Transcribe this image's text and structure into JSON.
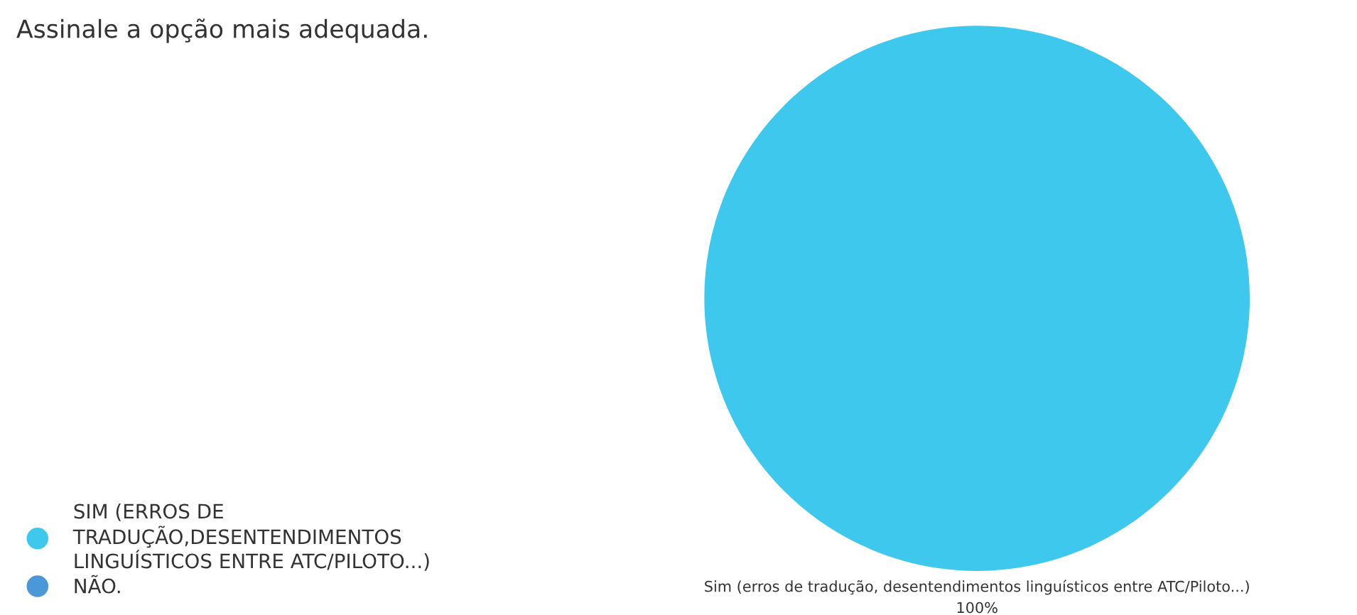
{
  "chart_data": {
    "type": "pie",
    "title": "Assinale a opção mais adequada.",
    "categories": [
      "SIM (ERROS DE TRADUÇÃO,DESENTENDIMENTOS LINGUÍSTICOS ENTRE ATC/PILOTO...)",
      "NÃO."
    ],
    "values": [
      100,
      0
    ],
    "colors": [
      "#3ec8ee",
      "#4a98d8"
    ],
    "value_labels": [
      "100%",
      null
    ],
    "annotations": [
      "Sim (erros de tradução, desentendimentos linguísticos entre ATC/Piloto...)"
    ],
    "legend": "bottom left"
  }
}
